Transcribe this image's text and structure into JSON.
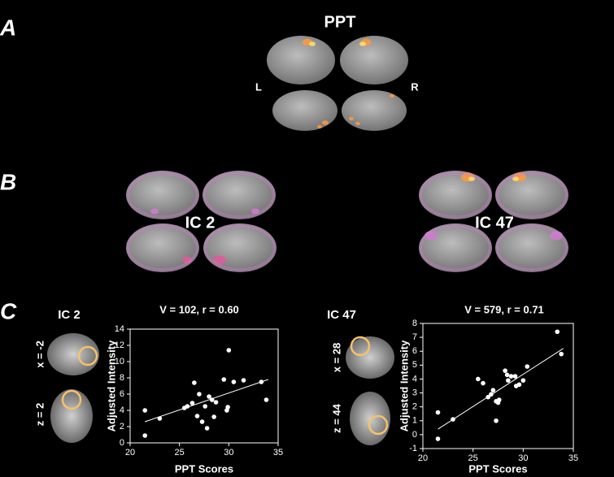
{
  "panels": [
    "A",
    "B",
    "C"
  ],
  "panel_a": {
    "title": "PPT",
    "left": "L",
    "right": "R"
  },
  "panel_b": {
    "labels": [
      "IC 2",
      "IC 47"
    ]
  },
  "panel_c": {
    "headings": [
      "IC 2",
      "IC 47"
    ],
    "slices": [
      "x = -2",
      "z = 2",
      "x = 28",
      "z = 44"
    ]
  },
  "chart_data": [
    {
      "type": "scatter",
      "title": "V = 102, r = 0.60",
      "xlabel": "PPT Scores",
      "ylabel": "Adjusted Intensity",
      "x": [
        21.5,
        21.5,
        23,
        25.5,
        25.8,
        26.3,
        26.5,
        26.8,
        27,
        27.3,
        27.6,
        27.8,
        28,
        28.3,
        28.5,
        28.7,
        29.5,
        29.8,
        29.9,
        30,
        30.5,
        31.5,
        33.3,
        33.8
      ],
      "values": [
        4.0,
        0.9,
        3.0,
        4.3,
        4.5,
        4.9,
        7.4,
        3.3,
        6.0,
        2.6,
        4.5,
        1.8,
        5.7,
        5.3,
        3.2,
        5.0,
        7.8,
        4.0,
        4.4,
        11.4,
        7.5,
        7.7,
        7.5,
        5.3
      ],
      "color": "#ffffff",
      "trendline": {
        "x": [
          21.5,
          34
        ],
        "y": [
          2.6,
          7.8
        ]
      },
      "xlim": [
        20,
        35
      ],
      "xticks": [
        20,
        25,
        30,
        35
      ],
      "ylim": [
        0,
        14
      ],
      "yticks": [
        0,
        2,
        4,
        6,
        8,
        10,
        12,
        14
      ]
    },
    {
      "type": "scatter",
      "title": "V = 579,  r = 0.71",
      "xlabel": "PPT Scores",
      "ylabel": "Adjusted Intensity",
      "x": [
        21.5,
        21.5,
        23,
        25.5,
        26,
        26.5,
        26.8,
        27,
        27.3,
        27.5,
        27.6,
        27.3,
        28.2,
        28.4,
        28.5,
        28.8,
        29.2,
        29.3,
        29.6,
        30,
        30.4,
        33.4,
        33.8
      ],
      "values": [
        1.6,
        -0.3,
        1.1,
        4.0,
        3.7,
        2.7,
        2.9,
        3.2,
        2.4,
        2.3,
        2.5,
        1.0,
        4.6,
        4.3,
        3.9,
        4.2,
        4.2,
        3.5,
        3.6,
        3.9,
        4.9,
        7.4,
        5.8
      ],
      "color": "#ffffff",
      "trendline": {
        "x": [
          21.5,
          34
        ],
        "y": [
          0.4,
          6.2
        ]
      },
      "xlim": [
        20,
        35
      ],
      "xticks": [
        20,
        25,
        30,
        35
      ],
      "ylim": [
        -1,
        8
      ],
      "yticks": [
        -1,
        0,
        1,
        2,
        3,
        4,
        5,
        6,
        7,
        8
      ]
    }
  ]
}
